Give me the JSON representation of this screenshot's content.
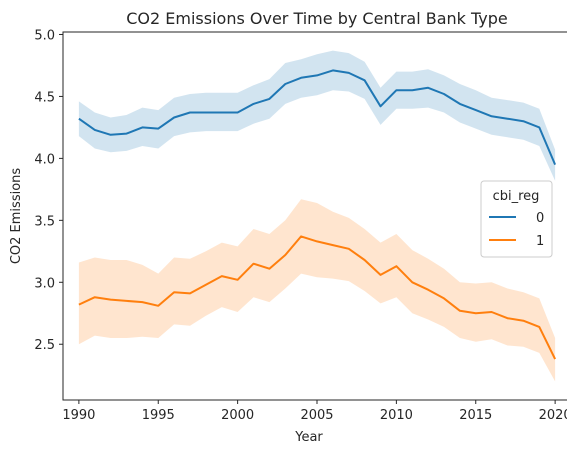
{
  "chart_data": {
    "type": "line",
    "title": "CO2 Emissions Over Time by Central Bank Type",
    "xlabel": "Year",
    "ylabel": "CO2 Emissions",
    "xlim": [
      1989,
      2021
    ],
    "ylim": [
      2.05,
      5.02
    ],
    "xticks": [
      1990,
      1995,
      2000,
      2005,
      2010,
      2015,
      2020
    ],
    "yticks": [
      2.5,
      3.0,
      3.5,
      4.0,
      4.5,
      5.0
    ],
    "xtick_labels": [
      "1990",
      "1995",
      "2000",
      "2005",
      "2010",
      "2015",
      "2020"
    ],
    "ytick_labels": [
      "2.5",
      "3.0",
      "3.5",
      "4.0",
      "4.5",
      "5.0"
    ],
    "grid": false,
    "legend": {
      "title": "cbi_reg",
      "placement": "center-right",
      "entries": [
        "0",
        "1"
      ]
    },
    "x": [
      1990,
      1991,
      1992,
      1993,
      1994,
      1995,
      1996,
      1997,
      1998,
      1999,
      2000,
      2001,
      2002,
      2003,
      2004,
      2005,
      2006,
      2007,
      2008,
      2009,
      2010,
      2011,
      2012,
      2013,
      2014,
      2015,
      2016,
      2017,
      2018,
      2019,
      2020
    ],
    "series": [
      {
        "name": "0",
        "color": "#1f77b4",
        "values": [
          4.32,
          4.23,
          4.19,
          4.2,
          4.25,
          4.24,
          4.33,
          4.37,
          4.37,
          4.37,
          4.37,
          4.44,
          4.48,
          4.6,
          4.65,
          4.67,
          4.71,
          4.69,
          4.63,
          4.42,
          4.55,
          4.55,
          4.57,
          4.52,
          4.44,
          4.39,
          4.34,
          4.32,
          4.3,
          4.25,
          3.95
        ],
        "ci_lower": [
          4.18,
          4.08,
          4.05,
          4.06,
          4.1,
          4.08,
          4.18,
          4.21,
          4.22,
          4.22,
          4.22,
          4.28,
          4.32,
          4.44,
          4.49,
          4.51,
          4.55,
          4.54,
          4.48,
          4.27,
          4.4,
          4.4,
          4.41,
          4.37,
          4.29,
          4.24,
          4.19,
          4.17,
          4.15,
          4.1,
          3.82
        ],
        "ci_upper": [
          4.46,
          4.37,
          4.33,
          4.35,
          4.41,
          4.39,
          4.49,
          4.52,
          4.53,
          4.53,
          4.53,
          4.59,
          4.64,
          4.77,
          4.8,
          4.84,
          4.87,
          4.85,
          4.78,
          4.57,
          4.7,
          4.7,
          4.72,
          4.67,
          4.6,
          4.55,
          4.49,
          4.47,
          4.45,
          4.4,
          4.07
        ]
      },
      {
        "name": "1",
        "color": "#ff7f0e",
        "values": [
          2.82,
          2.88,
          2.86,
          2.85,
          2.84,
          2.81,
          2.92,
          2.91,
          2.98,
          3.05,
          3.02,
          3.15,
          3.11,
          3.22,
          3.37,
          3.33,
          3.3,
          3.27,
          3.18,
          3.06,
          3.13,
          3.0,
          2.94,
          2.87,
          2.77,
          2.75,
          2.76,
          2.71,
          2.69,
          2.64,
          2.38
        ],
        "ci_lower": [
          2.5,
          2.57,
          2.55,
          2.55,
          2.56,
          2.55,
          2.66,
          2.65,
          2.73,
          2.8,
          2.76,
          2.88,
          2.84,
          2.95,
          3.07,
          3.04,
          3.03,
          3.01,
          2.93,
          2.83,
          2.88,
          2.75,
          2.7,
          2.64,
          2.55,
          2.52,
          2.54,
          2.49,
          2.48,
          2.43,
          2.2
        ],
        "ci_upper": [
          3.16,
          3.2,
          3.18,
          3.18,
          3.14,
          3.07,
          3.2,
          3.19,
          3.25,
          3.32,
          3.29,
          3.43,
          3.39,
          3.5,
          3.67,
          3.64,
          3.57,
          3.52,
          3.43,
          3.32,
          3.39,
          3.26,
          3.19,
          3.11,
          3.0,
          2.99,
          3.0,
          2.95,
          2.92,
          2.87,
          2.55
        ]
      }
    ]
  }
}
